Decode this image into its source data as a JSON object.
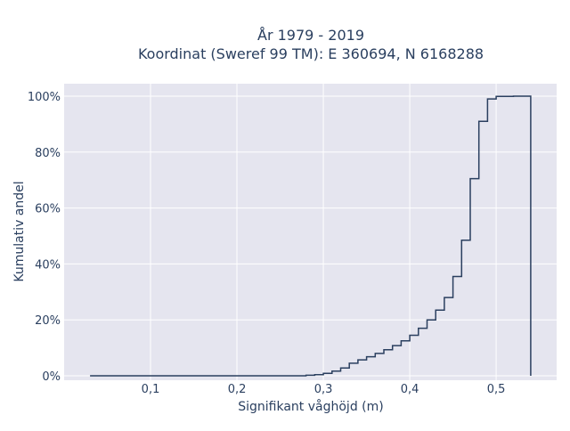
{
  "chart_data": {
    "type": "line",
    "subtype": "cumulative step histogram",
    "title_line1": "År 1979 - 2019",
    "title_line2": "Koordinat (Sweref 99 TM): E 360694, N 6168288",
    "xlabel": "Signifikant våghöjd (m)",
    "ylabel": "Kumulativ andel",
    "xlim": [
      0.0,
      0.57
    ],
    "ylim": [
      0,
      1.04
    ],
    "x_ticks": [
      0.1,
      0.2,
      0.3,
      0.4,
      0.5
    ],
    "x_tick_labels": [
      "0,1",
      "0,2",
      "0,3",
      "0,4",
      "0,5"
    ],
    "y_ticks": [
      0,
      0.2,
      0.4,
      0.6,
      0.8,
      1.0
    ],
    "y_tick_labels": [
      "0%",
      "20%",
      "40%",
      "60%",
      "80%",
      "100%"
    ],
    "grid": true,
    "colors": {
      "background": "#e5e5ef",
      "grid": "#ffffff",
      "line": "#2a3f5f"
    },
    "steps": [
      {
        "x": 0.03,
        "y": 0.0
      },
      {
        "x": 0.28,
        "y": 0.002
      },
      {
        "x": 0.29,
        "y": 0.004
      },
      {
        "x": 0.3,
        "y": 0.009
      },
      {
        "x": 0.31,
        "y": 0.017
      },
      {
        "x": 0.32,
        "y": 0.028
      },
      {
        "x": 0.33,
        "y": 0.045
      },
      {
        "x": 0.34,
        "y": 0.057
      },
      {
        "x": 0.35,
        "y": 0.068
      },
      {
        "x": 0.36,
        "y": 0.08
      },
      {
        "x": 0.37,
        "y": 0.093
      },
      {
        "x": 0.38,
        "y": 0.108
      },
      {
        "x": 0.39,
        "y": 0.125
      },
      {
        "x": 0.4,
        "y": 0.145
      },
      {
        "x": 0.41,
        "y": 0.17
      },
      {
        "x": 0.42,
        "y": 0.2
      },
      {
        "x": 0.43,
        "y": 0.235
      },
      {
        "x": 0.44,
        "y": 0.28
      },
      {
        "x": 0.45,
        "y": 0.355
      },
      {
        "x": 0.46,
        "y": 0.485
      },
      {
        "x": 0.47,
        "y": 0.705
      },
      {
        "x": 0.48,
        "y": 0.91
      },
      {
        "x": 0.49,
        "y": 0.99
      },
      {
        "x": 0.5,
        "y": 0.999
      },
      {
        "x": 0.52,
        "y": 1.0
      }
    ],
    "x_end": 0.54
  }
}
